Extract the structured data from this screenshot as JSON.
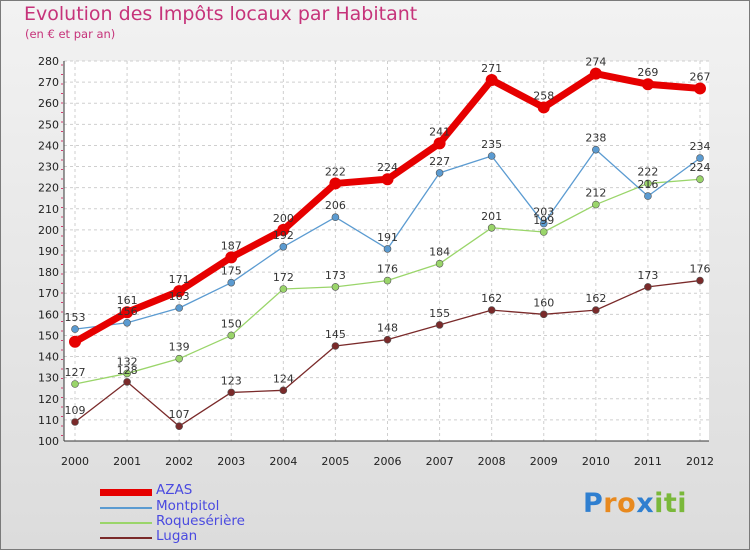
{
  "title": "Evolution des Impôts locaux par Habitant",
  "subtitle": "(en € et par an)",
  "logo_letters": [
    {
      "ch": "P",
      "color": "#2f7fd0"
    },
    {
      "ch": "r",
      "color": "#e8891e"
    },
    {
      "ch": "o",
      "color": "#e8891e"
    },
    {
      "ch": "x",
      "color": "#2f7fd0"
    },
    {
      "ch": "i",
      "color": "#7ab83a"
    },
    {
      "ch": "t",
      "color": "#7ab83a"
    },
    {
      "ch": "i",
      "color": "#7ab83a"
    }
  ],
  "chart_data": {
    "type": "line",
    "title": "Evolution des Impôts locaux par Habitant",
    "subtitle": "(en € et par an)",
    "x": [
      "2000",
      "2001",
      "2002",
      "2003",
      "2004",
      "2005",
      "2006",
      "2007",
      "2008",
      "2009",
      "2010",
      "2011",
      "2012"
    ],
    "ylim": [
      100,
      280
    ],
    "ytick_step": 10,
    "grid": true,
    "legend": "bottom-left",
    "series": [
      {
        "name": "AZAS",
        "color": "#e60000",
        "weight": "heavy",
        "values": [
          147,
          161,
          171,
          187,
          200,
          222,
          224,
          241,
          271,
          258,
          274,
          269,
          267
        ],
        "labels": [
          "",
          "161",
          "171",
          "187",
          "200",
          "222",
          "224",
          "241",
          "271",
          "258",
          "274",
          "269",
          "267"
        ]
      },
      {
        "name": "Montpitol",
        "color": "#5b9bd1",
        "weight": "thin",
        "values": [
          153,
          156,
          163,
          175,
          192,
          206,
          191,
          227,
          235,
          203,
          238,
          216,
          234
        ],
        "labels": [
          "153",
          "156",
          "163",
          "175",
          "192",
          "206",
          "191",
          "227",
          "235",
          "203",
          "238",
          "216",
          "234"
        ]
      },
      {
        "name": "Roquesérière",
        "color": "#9ad56a",
        "weight": "thin",
        "values": [
          127,
          132,
          139,
          150,
          172,
          173,
          176,
          184,
          201,
          199,
          212,
          222,
          224
        ],
        "labels": [
          "127",
          "132",
          "139",
          "150",
          "172",
          "173",
          "176",
          "184",
          "201",
          "199",
          "212",
          "222",
          "224"
        ]
      },
      {
        "name": "Lugan",
        "color": "#7a2a2a",
        "weight": "thin",
        "values": [
          109,
          128,
          107,
          123,
          124,
          145,
          148,
          155,
          162,
          160,
          162,
          173,
          176
        ],
        "labels": [
          "109",
          "128",
          "107",
          "123",
          "124",
          "145",
          "148",
          "155",
          "162",
          "160",
          "162",
          "173",
          "176"
        ]
      }
    ]
  }
}
